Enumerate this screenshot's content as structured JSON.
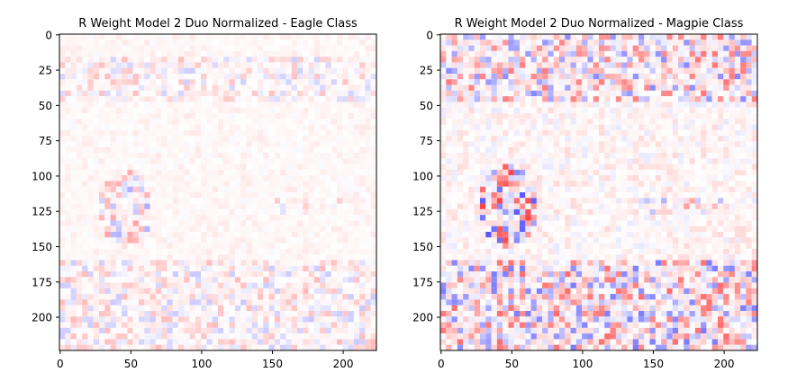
{
  "figure": {
    "background": "#ffffff",
    "colormap": "bwr",
    "colors": {
      "negative": "#0000ff",
      "zero": "#ffffff",
      "positive": "#ff0000"
    }
  },
  "chart_data": [
    {
      "type": "heatmap",
      "title": "R Weight Model 2 Duo Normalized - Eagle Class",
      "xlabel": "",
      "ylabel": "",
      "shape": [
        224,
        224
      ],
      "xlim": [
        -0.5,
        223.5
      ],
      "ylim": [
        223.5,
        -0.5
      ],
      "xticks": [
        0,
        50,
        100,
        150,
        200
      ],
      "yticks": [
        0,
        25,
        50,
        75,
        100,
        125,
        150,
        175,
        200
      ],
      "grid": false,
      "legend": "none",
      "value_range": [
        -1,
        1
      ],
      "relevance_intensity": {
        "top_band_rows": [
          15,
          47
        ],
        "top_band": 0.22,
        "middle_rows": [
          48,
          160
        ],
        "middle": 0.06,
        "bottom_band_rows": [
          161,
          223
        ],
        "bottom_band": 0.24,
        "head_blob": {
          "center_x": 47,
          "center_y": 123,
          "radius_x": 18,
          "radius_y": 28,
          "intensity": 0.35
        },
        "tail_streak": {
          "x_range": [
            140,
            200
          ],
          "y_range": [
            115,
            128
          ],
          "intensity": 0.18
        }
      }
    },
    {
      "type": "heatmap",
      "title": "R Weight Model 2 Duo Normalized - Magpie Class",
      "xlabel": "",
      "ylabel": "",
      "shape": [
        224,
        224
      ],
      "xlim": [
        -0.5,
        223.5
      ],
      "ylim": [
        223.5,
        -0.5
      ],
      "xticks": [
        0,
        50,
        100,
        150,
        200
      ],
      "yticks": [
        0,
        25,
        50,
        75,
        100,
        125,
        150,
        175,
        200
      ],
      "grid": false,
      "legend": "none",
      "value_range": [
        -1,
        1
      ],
      "relevance_intensity": {
        "top_band_rows": [
          0,
          47
        ],
        "top_band": 0.5,
        "middle_rows": [
          48,
          160
        ],
        "middle": 0.12,
        "bottom_band_rows": [
          161,
          223
        ],
        "bottom_band": 0.55,
        "head_blob": {
          "center_x": 48,
          "center_y": 122,
          "radius_x": 20,
          "radius_y": 29,
          "intensity": 0.7
        },
        "tail_streak": {
          "x_range": [
            140,
            200
          ],
          "y_range": [
            115,
            128
          ],
          "intensity": 0.35
        }
      }
    }
  ]
}
